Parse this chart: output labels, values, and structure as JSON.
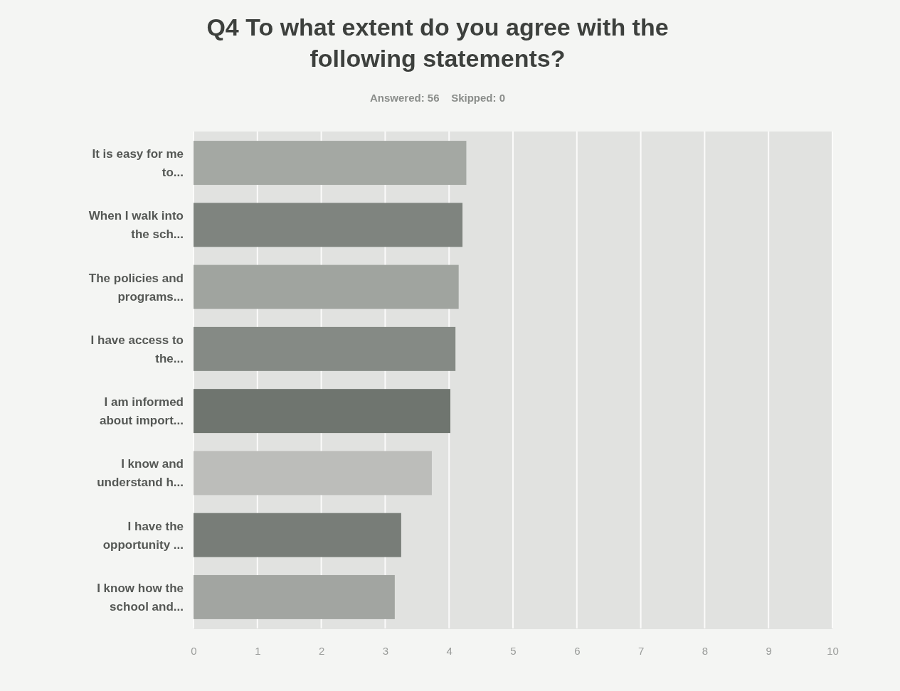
{
  "chart_data": {
    "type": "bar",
    "orientation": "horizontal",
    "title": "Q4 To what extent do you agree with the following statements?",
    "subtitle": "Answered: 56    Skipped: 0",
    "categories": [
      "It is easy for me to...",
      "When I walk into the sch...",
      "The policies and programs...",
      "I have access to the...",
      "I am informed about import...",
      "I know and understand h...",
      "I have the opportunity ...",
      "I know how the school and..."
    ],
    "values": [
      4.27,
      4.21,
      4.15,
      4.1,
      4.02,
      3.73,
      3.25,
      3.15
    ],
    "colors": [
      "#a4a8a3",
      "#7f847f",
      "#a0a49f",
      "#858a85",
      "#6f756f",
      "#bcbdba",
      "#787d78",
      "#a2a5a1"
    ],
    "xlim": [
      0,
      10
    ],
    "xticks": [
      0,
      1,
      2,
      3,
      4,
      5,
      6,
      7,
      8,
      9,
      10
    ],
    "grid": "x"
  }
}
